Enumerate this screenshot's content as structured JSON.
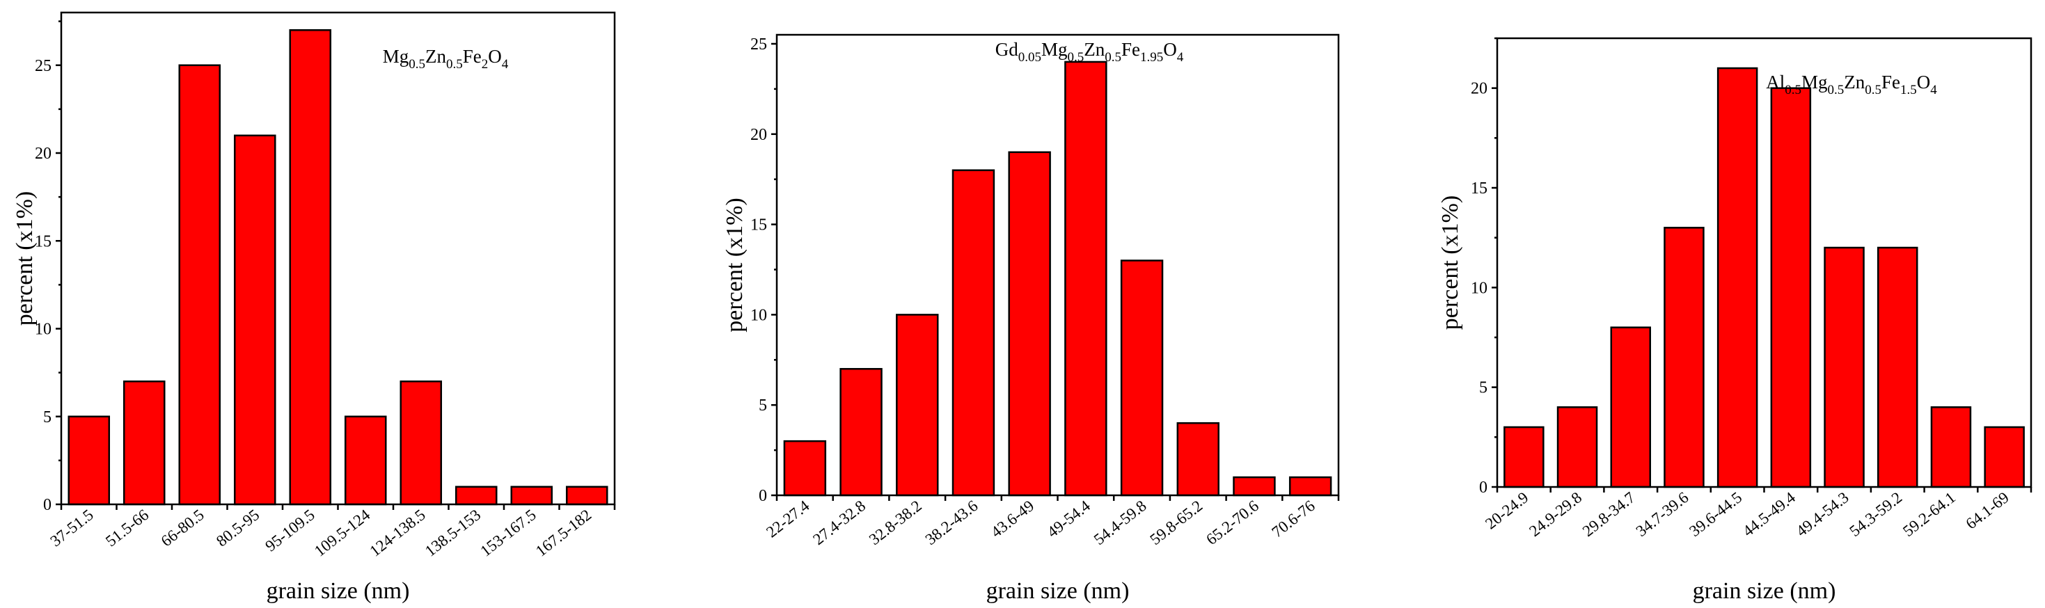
{
  "chart_data": [
    {
      "type": "bar",
      "title": "",
      "legend": [
        {
          "text": "Mg",
          "sub": false
        },
        {
          "text": "0.5",
          "sub": true
        },
        {
          "text": "Zn",
          "sub": false
        },
        {
          "text": "0.5",
          "sub": true
        },
        {
          "text": "Fe",
          "sub": false
        },
        {
          "text": "2",
          "sub": true
        },
        {
          "text": "O",
          "sub": false
        },
        {
          "text": "4",
          "sub": true
        }
      ],
      "xlabel": "grain size (nm)",
      "ylabel": "percent  (x1%)",
      "ylim": [
        0,
        28
      ],
      "yticks": [
        0,
        5,
        10,
        15,
        20,
        25
      ],
      "categories": [
        "37-51.5",
        "51.5-66",
        "66-80.5",
        "80.5-95",
        "95-109.5",
        "109.5-124",
        "124-138.5",
        "138.5-153",
        "153-167.5",
        "167.5-182"
      ],
      "values": [
        5,
        7,
        25,
        21,
        27,
        5,
        7,
        1,
        1,
        1
      ]
    },
    {
      "type": "bar",
      "title": "",
      "legend": [
        {
          "text": "Gd",
          "sub": false
        },
        {
          "text": "0.05",
          "sub": true
        },
        {
          "text": "Mg",
          "sub": false
        },
        {
          "text": "0.5",
          "sub": true
        },
        {
          "text": "Zn",
          "sub": false
        },
        {
          "text": "0.5",
          "sub": true
        },
        {
          "text": "Fe",
          "sub": false
        },
        {
          "text": "1.95",
          "sub": true
        },
        {
          "text": "O",
          "sub": false
        },
        {
          "text": "4",
          "sub": true
        }
      ],
      "xlabel": "grain size (nm)",
      "ylabel": "percent  (x1%)",
      "ylim": [
        0,
        25.5
      ],
      "yticks": [
        0,
        5,
        10,
        15,
        20,
        25
      ],
      "categories": [
        "22-27.4",
        "27.4-32.8",
        "32.8-38.2",
        "38.2-43.6",
        "43.6-49",
        "49-54.4",
        "54.4-59.8",
        "59.8-65.2",
        "65.2-70.6",
        "70.6-76"
      ],
      "values": [
        3,
        7,
        10,
        18,
        19,
        24,
        13,
        4,
        1,
        1
      ]
    },
    {
      "type": "bar",
      "title": "",
      "legend": [
        {
          "text": "Al",
          "sub": false
        },
        {
          "text": "0.5",
          "sub": true
        },
        {
          "text": "Mg",
          "sub": false
        },
        {
          "text": "0.5",
          "sub": true
        },
        {
          "text": "Zn",
          "sub": false
        },
        {
          "text": "0.5",
          "sub": true
        },
        {
          "text": "Fe",
          "sub": false
        },
        {
          "text": "1.5",
          "sub": true
        },
        {
          "text": "O",
          "sub": false
        },
        {
          "text": "4",
          "sub": true
        }
      ],
      "xlabel": "grain size (nm)",
      "ylabel": "percent  (x1%)",
      "ylim": [
        0,
        22.5
      ],
      "yticks": [
        0,
        5,
        10,
        15,
        20
      ],
      "categories": [
        "20-24.9",
        "24.9-29.8",
        "29.8-34.7",
        "34.7-39.6",
        "39.6-44.5",
        "44.5-49.4",
        "49.4-54.3",
        "54.3-59.2",
        "59.2-64.1",
        "64.1-69"
      ],
      "values": [
        3,
        4,
        8,
        13,
        21,
        20,
        12,
        12,
        4,
        3
      ]
    }
  ]
}
